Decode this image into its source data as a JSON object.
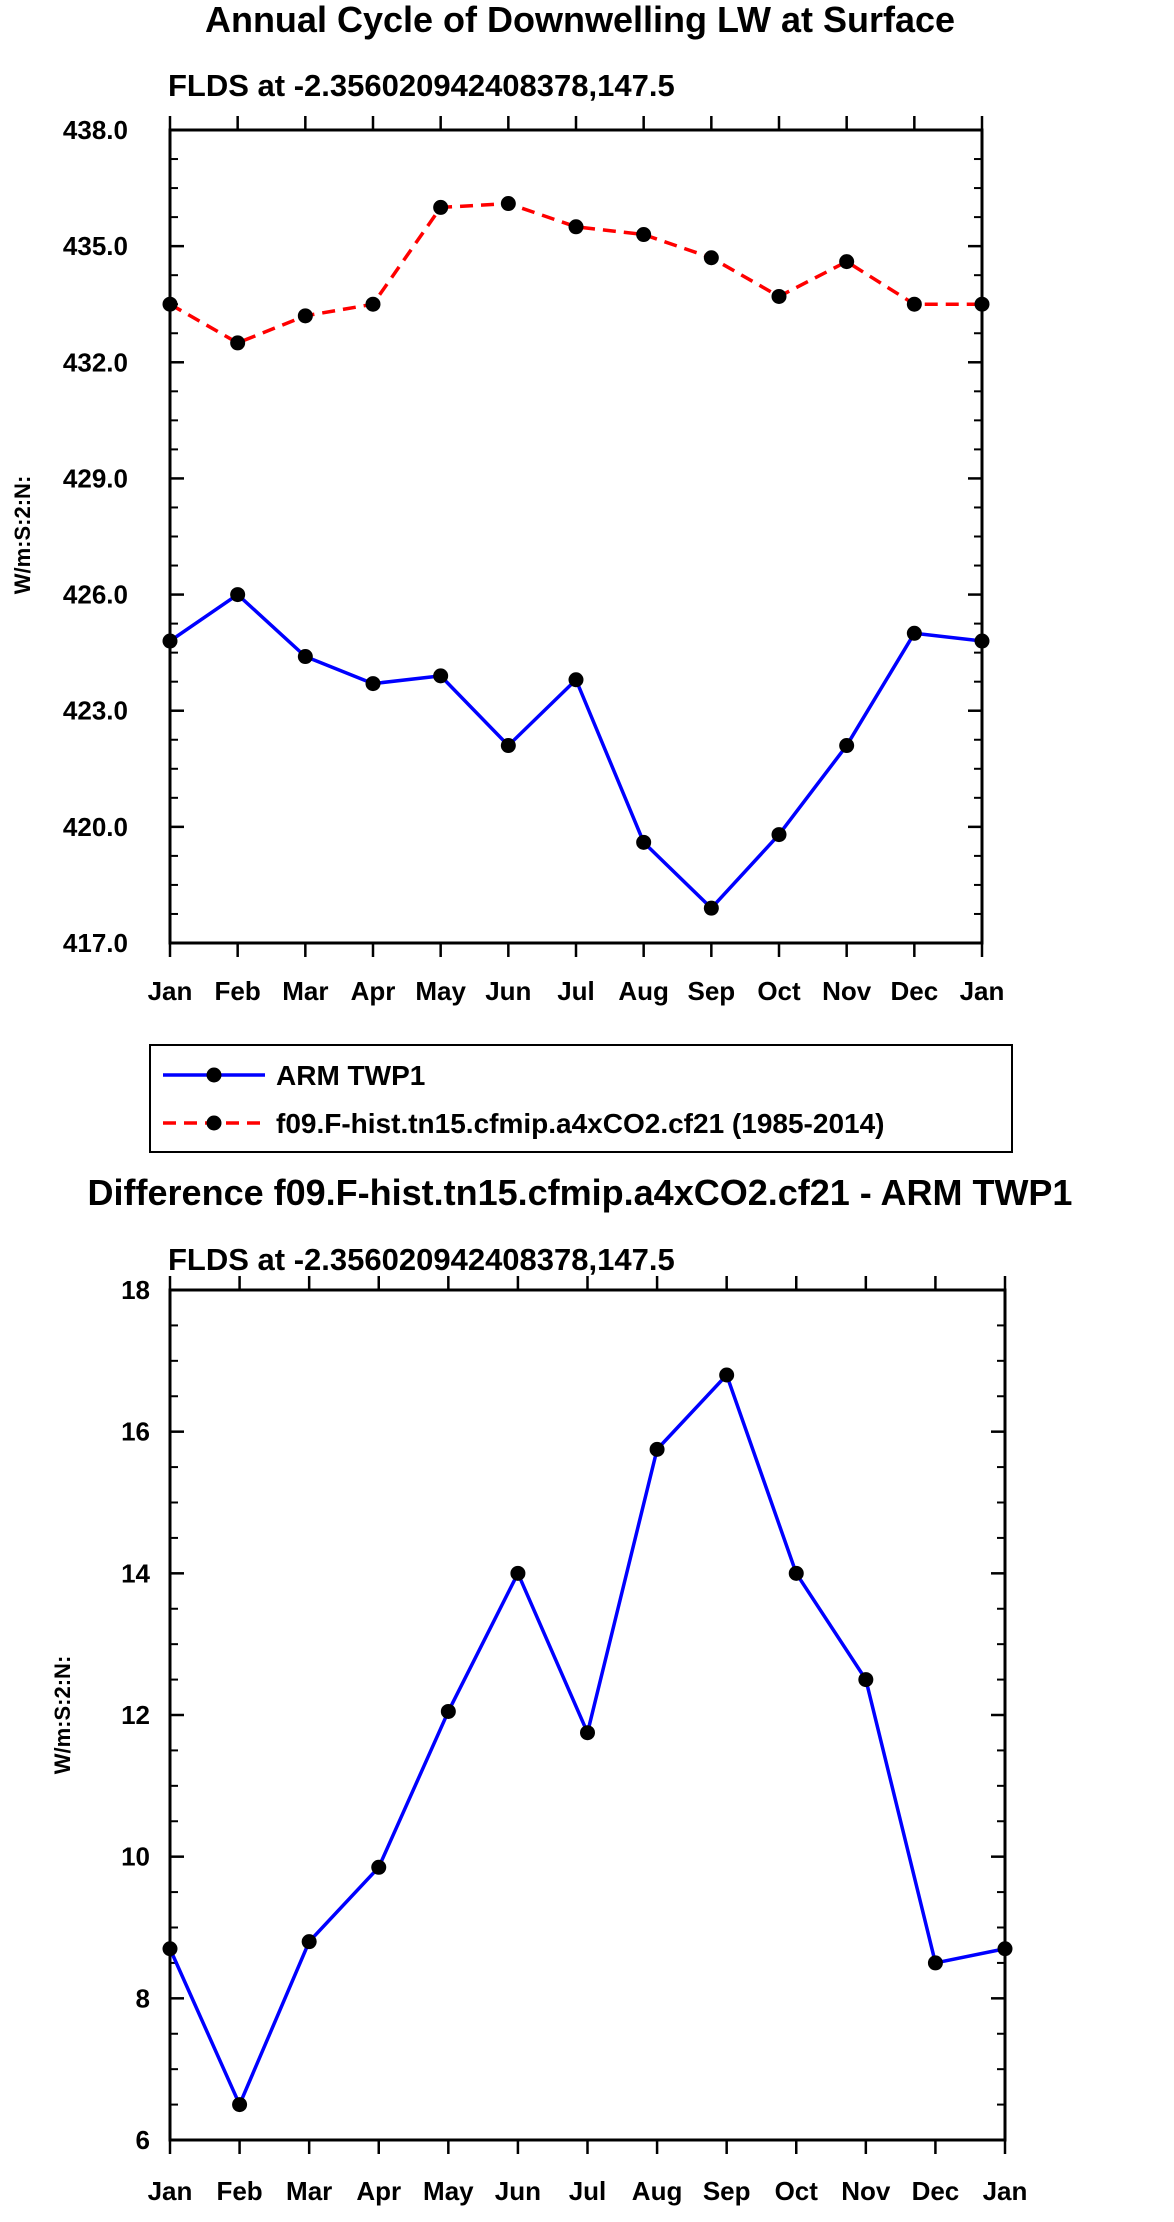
{
  "chart_data": [
    {
      "type": "line",
      "title": "Annual Cycle of Downwelling LW at Surface",
      "subtitle": "FLDS at -2.356020942408378,147.5",
      "xlabel": "",
      "ylabel": "W/m:S:2:N:",
      "categories": [
        "Jan",
        "Feb",
        "Mar",
        "Apr",
        "May",
        "Jun",
        "Jul",
        "Aug",
        "Sep",
        "Oct",
        "Nov",
        "Dec",
        "Jan"
      ],
      "ylim": [
        417.0,
        438.0
      ],
      "yticks": [
        "417.0",
        "420.0",
        "423.0",
        "426.0",
        "429.0",
        "432.0",
        "435.0",
        "438.0"
      ],
      "series": [
        {
          "name": "ARM TWP1",
          "color": "#0000ff",
          "dash": "solid",
          "values": [
            424.8,
            426.0,
            424.4,
            423.7,
            423.9,
            422.1,
            423.8,
            419.6,
            417.9,
            419.8,
            422.1,
            425.0,
            424.8
          ]
        },
        {
          "name": "f09.F-hist.tn15.cfmip.a4xCO2.cf21 (1985-2014)",
          "color": "#ff0000",
          "dash": "dashed",
          "values": [
            433.5,
            432.5,
            433.2,
            433.5,
            436.0,
            436.1,
            435.5,
            435.3,
            434.7,
            433.7,
            434.6,
            433.5,
            433.5
          ]
        }
      ],
      "legend_position": "below"
    },
    {
      "type": "line",
      "title": "Difference f09.F-hist.tn15.cfmip.a4xCO2.cf21 - ARM TWP1",
      "subtitle": "FLDS at -2.356020942408378,147.5",
      "xlabel": "",
      "ylabel": "W/m:S:2:N:",
      "categories": [
        "Jan",
        "Feb",
        "Mar",
        "Apr",
        "May",
        "Jun",
        "Jul",
        "Aug",
        "Sep",
        "Oct",
        "Nov",
        "Dec",
        "Jan"
      ],
      "ylim": [
        6,
        18
      ],
      "yticks": [
        "6",
        "8",
        "10",
        "12",
        "14",
        "16",
        "18"
      ],
      "series": [
        {
          "name": "Difference",
          "color": "#0000ff",
          "dash": "solid",
          "values": [
            8.7,
            6.5,
            8.8,
            9.85,
            12.05,
            14.0,
            11.75,
            15.75,
            16.8,
            14.0,
            12.5,
            8.5,
            8.7
          ]
        }
      ]
    }
  ]
}
